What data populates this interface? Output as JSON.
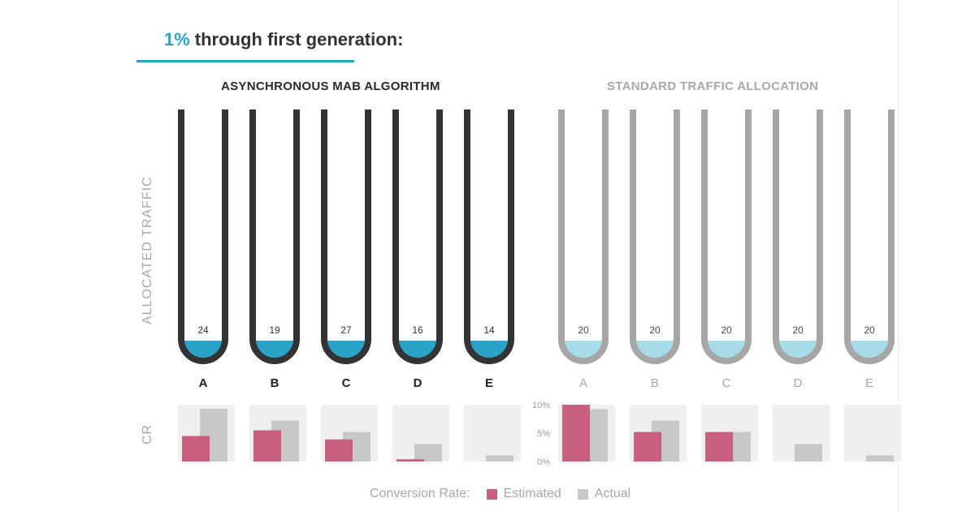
{
  "header": {
    "title_pct": "1%",
    "title_rest": "through first generation:"
  },
  "axis": {
    "traffic_label": "ALLOCATED TRAFFIC",
    "cr_label": "CR"
  },
  "legend": {
    "label": "Conversion Rate:",
    "estimated": "Estimated",
    "actual": "Actual"
  },
  "colors": {
    "accent": "#2ba3c9",
    "dark_tube": "#333333",
    "light_tube": "#a6a6a6",
    "dark_fill": "#2ba3c9",
    "light_fill": "#a6dcea",
    "estimated": "#c8607f",
    "actual": "#c8c8c8",
    "cr_bg": "#efefef"
  },
  "chart_data": [
    {
      "type": "bar",
      "group": "left",
      "title": "ASYNCHRONOUS MAB ALGORITHM",
      "categories": [
        "A",
        "B",
        "C",
        "D",
        "E"
      ],
      "traffic": [
        24,
        19,
        27,
        16,
        14
      ],
      "series": [
        {
          "name": "Estimated",
          "values": [
            4.5,
            5.5,
            3.9,
            0.4,
            0.0
          ]
        },
        {
          "name": "Actual",
          "values": [
            9.3,
            7.2,
            5.2,
            3.1,
            1.1
          ]
        }
      ],
      "ylim": [
        0,
        10
      ],
      "ylabel": "CR"
    },
    {
      "type": "bar",
      "group": "right",
      "title": "STANDARD TRAFFIC ALLOCATION",
      "categories": [
        "A",
        "B",
        "C",
        "D",
        "E"
      ],
      "traffic": [
        20,
        20,
        20,
        20,
        20
      ],
      "series": [
        {
          "name": "Estimated",
          "values": [
            10.0,
            5.2,
            5.2,
            0.0,
            0.0
          ]
        },
        {
          "name": "Actual",
          "values": [
            9.2,
            7.2,
            5.2,
            3.1,
            1.1
          ]
        }
      ],
      "ylim": [
        0,
        10
      ],
      "yticks": [
        "10%",
        "5%",
        "0%"
      ],
      "ylabel": "CR"
    }
  ]
}
